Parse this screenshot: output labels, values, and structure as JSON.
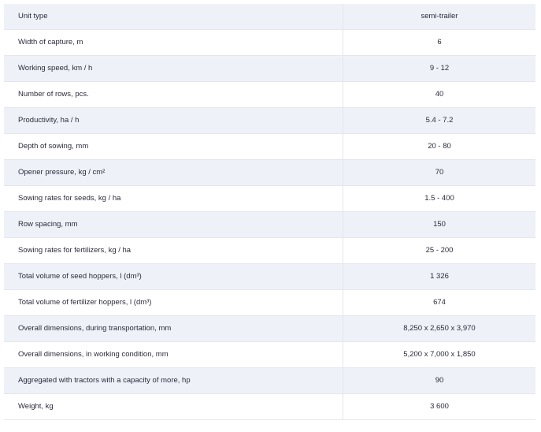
{
  "spec_table": {
    "rows": [
      {
        "parameter": "Unit type",
        "value": "semi-trailer"
      },
      {
        "parameter": "Width of capture, m",
        "value": "6"
      },
      {
        "parameter": "Working speed, km / h",
        "value": "9 - 12"
      },
      {
        "parameter": "Number of rows, pcs.",
        "value": "40"
      },
      {
        "parameter": "Productivity, ha / h",
        "value": "5.4 - 7.2"
      },
      {
        "parameter": "Depth of sowing, mm",
        "value": "20 - 80"
      },
      {
        "parameter": "Opener pressure, kg / cm²",
        "value": "70"
      },
      {
        "parameter": "Sowing rates for seeds, kg / ha",
        "value": "1.5 - 400"
      },
      {
        "parameter": "Row spacing, mm",
        "value": "150"
      },
      {
        "parameter": "Sowing rates for fertilizers, kg / ha",
        "value": "25 - 200"
      },
      {
        "parameter": "Total volume of seed hoppers, l (dm³)",
        "value": "1 326"
      },
      {
        "parameter": "Total volume of fertilizer hoppers, l (dm³)",
        "value": "674"
      },
      {
        "parameter": "Overall dimensions, during transportation, mm",
        "value": "8,250 x 2,650 x 3,970"
      },
      {
        "parameter": "Overall dimensions, in working condition, mm",
        "value": "5,200 x 7,000 x 1,850"
      },
      {
        "parameter": "Aggregated with tractors with a capacity of more, hp",
        "value": "90"
      },
      {
        "parameter": "Weight, kg",
        "value": "3 600"
      }
    ]
  },
  "colors": {
    "row_shaded": "#eef1f7",
    "row_plain": "#ffffff",
    "border": "#e3e6ee",
    "text": "#2b2b3a"
  }
}
